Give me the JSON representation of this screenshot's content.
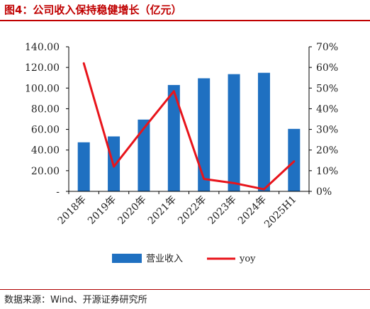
{
  "figure": {
    "title": "图4：公司收入保持稳健增长（亿元）",
    "source": "数据来源：Wind、开源证券研究所"
  },
  "colors": {
    "title": "#c00000",
    "bar": "#1f70c1",
    "line": "#e8141b",
    "axis": "#000000"
  },
  "chart_data": {
    "type": "bar",
    "categories": [
      "2018年",
      "2019年",
      "2020年",
      "2021年",
      "2022年",
      "2023年",
      "2024年",
      "2025H1"
    ],
    "series": [
      {
        "name": "营业收入",
        "type": "bar",
        "axis": "left",
        "values": [
          47.5,
          53.2,
          69.5,
          103.0,
          109.5,
          113.5,
          114.8,
          60.5
        ]
      },
      {
        "name": "yoy",
        "type": "line",
        "axis": "right",
        "values": [
          62.0,
          12.0,
          30.5,
          48.5,
          6.0,
          4.0,
          1.0,
          14.5
        ]
      }
    ],
    "y_left": {
      "ticks": [
        "-",
        "20.00",
        "40.00",
        "60.00",
        "80.00",
        "100.00",
        "120.00",
        "140.00"
      ],
      "ylim": [
        0,
        140
      ]
    },
    "y_right": {
      "ticks": [
        "0%",
        "10%",
        "20%",
        "30%",
        "40%",
        "50%",
        "60%",
        "70%"
      ],
      "ylim": [
        0,
        70
      ]
    },
    "grid": false,
    "legend_position": "bottom"
  }
}
